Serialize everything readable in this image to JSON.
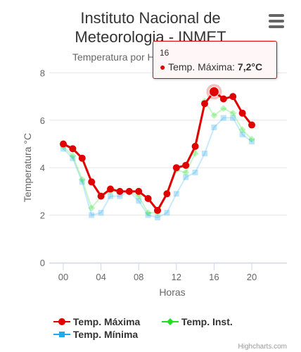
{
  "chart_data": {
    "type": "line",
    "title": "Instituto Nacional de Meteorologia - INMET",
    "subtitle": "Temperatura por Hora || 07/05/2021",
    "xlabel": "Horas",
    "ylabel": "Temperatura °C",
    "x": [
      0,
      1,
      2,
      3,
      4,
      5,
      6,
      7,
      8,
      9,
      10,
      11,
      12,
      13,
      14,
      15,
      16,
      17,
      18,
      19,
      20
    ],
    "x_tick_labels": [
      "00",
      "04",
      "08",
      "12",
      "16",
      "20"
    ],
    "y_tick_labels": [
      "0",
      "2",
      "4",
      "6",
      "8"
    ],
    "ylim": [
      0,
      8.5
    ],
    "grid": true,
    "legend_position": "bottom-left",
    "series": [
      {
        "name": "Temp. Máxima",
        "color": "#e00000",
        "marker": "circle",
        "values": [
          5.0,
          4.8,
          4.4,
          3.4,
          2.8,
          3.1,
          3.0,
          3.0,
          3.0,
          2.7,
          2.2,
          2.9,
          4.0,
          4.1,
          4.9,
          6.7,
          7.2,
          6.9,
          7.0,
          6.3,
          5.8
        ]
      },
      {
        "name": "Temp. Inst.",
        "color": "#22dd22",
        "marker": "diamond",
        "values": [
          4.9,
          4.5,
          3.5,
          2.3,
          2.8,
          3.0,
          3.0,
          3.0,
          2.8,
          2.1,
          2.1,
          2.9,
          3.9,
          3.8,
          4.6,
          6.8,
          6.2,
          6.5,
          6.3,
          5.6,
          5.2
        ]
      },
      {
        "name": "Temp. Mínima",
        "color": "#22aaee",
        "marker": "square",
        "values": [
          4.8,
          4.4,
          3.4,
          2.0,
          2.1,
          2.8,
          2.8,
          3.0,
          2.6,
          2.0,
          1.9,
          2.1,
          2.9,
          3.6,
          3.8,
          4.6,
          5.7,
          6.1,
          6.1,
          5.4,
          5.1
        ]
      }
    ],
    "tooltip": {
      "header": "16",
      "series_name": "Temp. Máxima",
      "value": "7,2°C"
    }
  },
  "credit": "Highcharts.com"
}
